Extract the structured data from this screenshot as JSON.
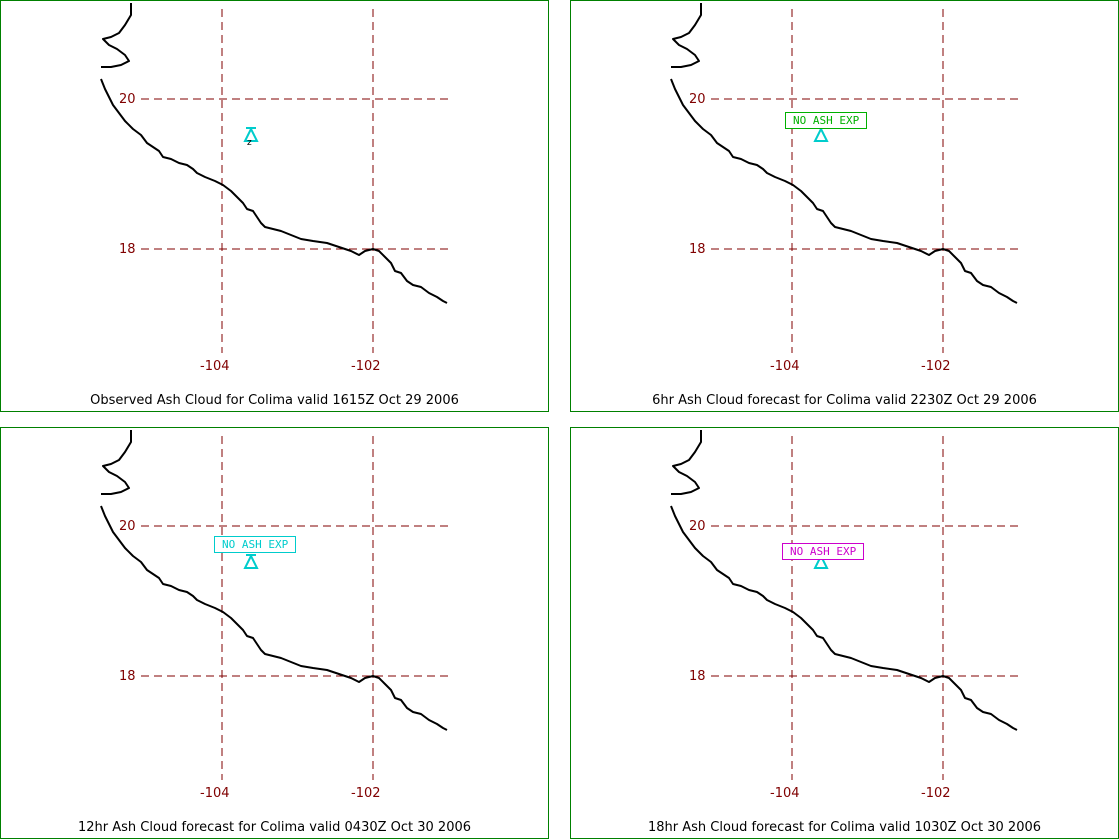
{
  "panels": [
    {
      "caption": "Observed Ash Cloud for Colima valid 1615Z Oct 29 2006",
      "label": "",
      "label_color": "",
      "volcano_mark": "z"
    },
    {
      "caption": "6hr Ash Cloud forecast for Colima valid 2230Z Oct 29 2006",
      "label": "NO ASH EXP",
      "label_color": "#00b000"
    },
    {
      "caption": "12hr Ash Cloud forecast for Colima valid 0430Z Oct 30 2006",
      "label": "NO ASH EXP",
      "label_color": "#00cccc"
    },
    {
      "caption": "18hr Ash Cloud forecast for Colima valid 1030Z Oct 30 2006",
      "label": "NO ASH EXP",
      "label_color": "#cc00cc"
    }
  ],
  "map": {
    "lat_labels": [
      "20",
      "18"
    ],
    "lon_labels": [
      "-104",
      "-102"
    ],
    "volcano_icon": "volcano-triangle-icon",
    "grid_color": "#800000",
    "volcano_color": "#00cccc",
    "border_color": "#008000"
  }
}
